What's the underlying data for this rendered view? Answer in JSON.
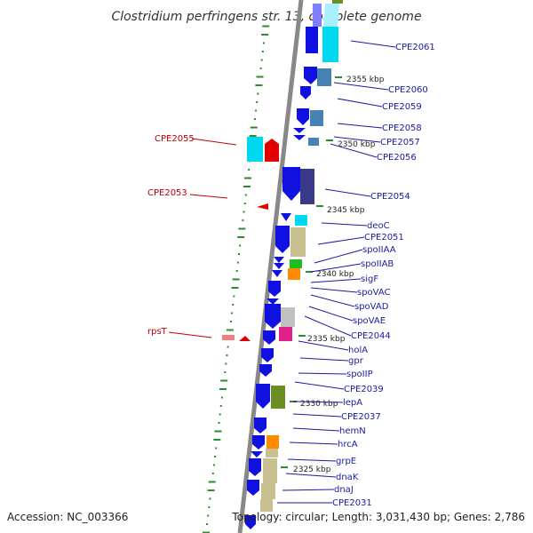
{
  "title": "Clostridium perfringens str. 13, complete genome",
  "accession": "Accession: NC_003366",
  "topology": "Topology: circular; Length: 3,031,430 bp; Genes: 2,786",
  "scale_labels": [
    "2355 kbp",
    "2350 kbp",
    "2345 kbp",
    "2340 kbp",
    "2335 kbp",
    "2330 kbp",
    "2325 kbp"
  ],
  "genes_right": [
    "CPE2061",
    "CPE2060",
    "CPE2059",
    "CPE2058",
    "CPE2057",
    "CPE2056",
    "CPE2054",
    "deoC",
    "CPE2051",
    "spoIIAA",
    "spoIIAB",
    "sigF",
    "spoVAC",
    "spoVAD",
    "spoVAE",
    "CPE2044",
    "holA",
    "gpr",
    "spoIIP",
    "CPE2039",
    "lepA",
    "CPE2037",
    "hemN",
    "hrcA",
    "grpE",
    "dnaK",
    "dnaJ",
    "CPE2031"
  ],
  "genes_left": [
    "CPE2055",
    "CPE2053",
    "rpsT"
  ],
  "colors": {
    "cds": "#1010e0",
    "cyan": "#00d8f0",
    "red": "#e00000",
    "olive": "#6b8e23",
    "khaki": "#c8c090",
    "steel": "#4682b4",
    "green": "#22bb22",
    "orange": "#ff8c00",
    "magenta": "#e0208a",
    "navy": "#3a3a8a",
    "silver": "#c0c0c0",
    "gc_tick": "#2e8b2e",
    "backbone": "#888888"
  }
}
